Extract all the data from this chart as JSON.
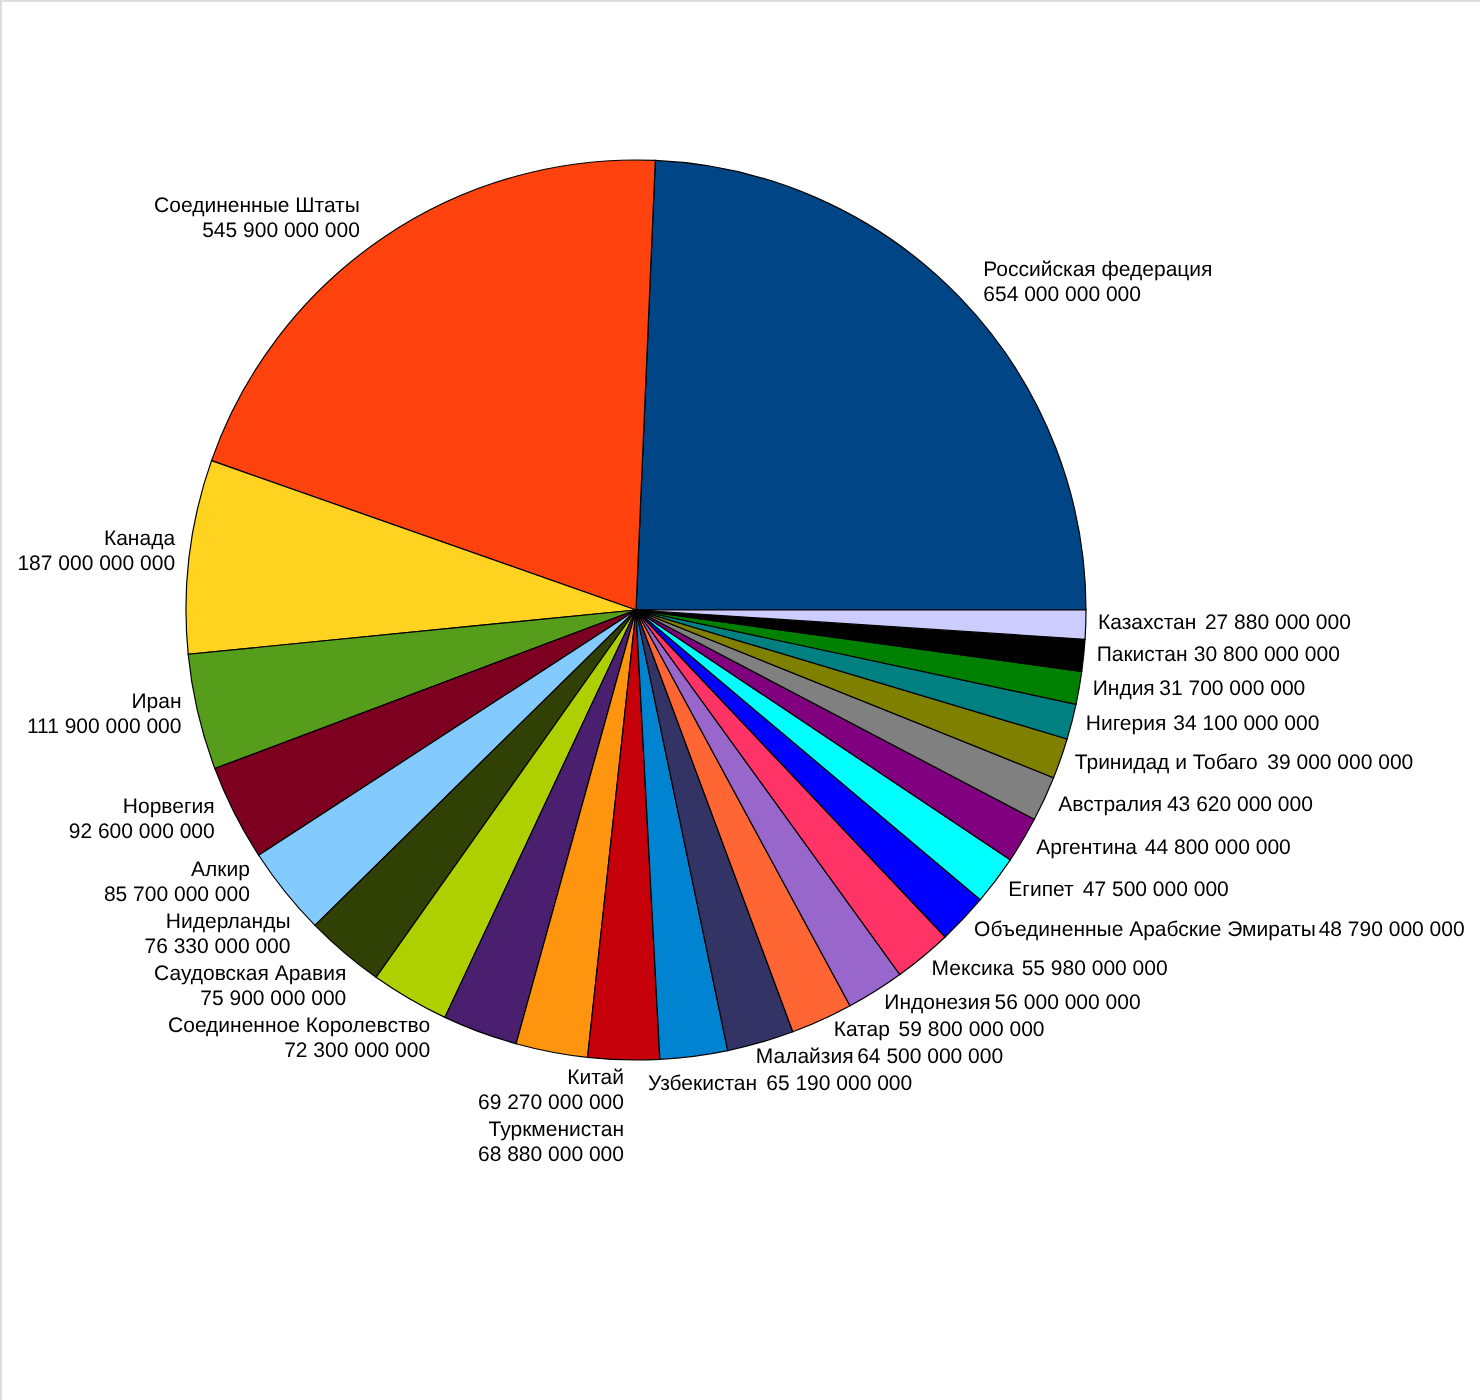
{
  "chart_data": {
    "type": "pie",
    "categories": [
      "Российская федерация",
      "Соединенные Штаты",
      "Канада",
      "Иран",
      "Норвегия",
      "Алкир",
      "Нидерланды",
      "Саудовская Аравия",
      "Соединенное Королевство",
      "Китай",
      "Туркменистан",
      "Узбекистан",
      "Малайзия",
      "Катар",
      "Индонезия",
      "Мексика",
      "Объединенные Арабские Эмираты",
      "Египет",
      "Аргентина",
      "Австралия",
      "Тринидад и Тобаго",
      "Нигерия",
      "Индия",
      "Пакистан",
      "Казахстан"
    ],
    "values": [
      654000000000,
      545900000000,
      187000000000,
      111900000000,
      92600000000,
      85700000000,
      76330000000,
      75900000000,
      72300000000,
      69270000000,
      68880000000,
      65190000000,
      64500000000,
      59800000000,
      56000000000,
      55980000000,
      48790000000,
      47500000000,
      44800000000,
      43620000000,
      39000000000,
      34100000000,
      31700000000,
      30800000000,
      27880000000
    ],
    "value_labels": [
      "654 000 000 000",
      "545 900 000 000",
      "187 000 000 000",
      "111 900 000 000",
      "92 600 000 000",
      "85 700 000 000",
      "76 330 000 000",
      "75 900 000 000",
      "72 300 000 000",
      "69 270 000 000",
      "68 880 000 000",
      "65 190 000 000",
      "64 500 000 000",
      "59 800 000 000",
      "56 000 000 000",
      "55 980 000 000",
      "48 790 000 000",
      "47 500 000 000",
      "44 800 000 000",
      "43 620 000 000",
      "39 000 000 000",
      "34 100 000 000",
      "31 700 000 000",
      "30 800 000 000",
      "27 880 000 000"
    ],
    "colors": [
      "#004586",
      "#ff420e",
      "#ffd320",
      "#579d1c",
      "#7e0021",
      "#83caff",
      "#314004",
      "#aecf00",
      "#4b1f6f",
      "#ff950e",
      "#c5000b",
      "#0084d1",
      "#333366",
      "#ff6633",
      "#9966cc",
      "#ff3366",
      "#0000ff",
      "#00ffff",
      "#800080",
      "#808080",
      "#808000",
      "#008080",
      "#008000",
      "#000000",
      "#ccccff"
    ]
  }
}
